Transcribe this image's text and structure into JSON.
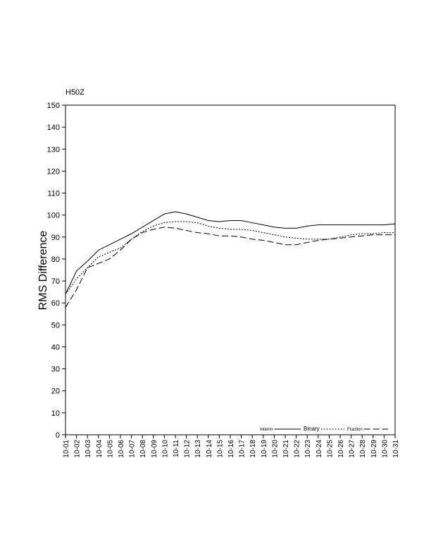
{
  "chart_data": {
    "type": "line",
    "title": "H50Z",
    "y_label": "RMS Difference",
    "categories": [
      "10-01",
      "10-02",
      "10-03",
      "10-04",
      "10-05",
      "10-06",
      "10-07",
      "10-08",
      "10-09",
      "10-10",
      "10-11",
      "10-12",
      "10-13",
      "10-14",
      "10-15",
      "10-16",
      "10-17",
      "10-18",
      "10-19",
      "10-20",
      "10-21",
      "10-22",
      "10-23",
      "10-24",
      "10-25",
      "10-26",
      "10-27",
      "10-28",
      "10-29",
      "10-30",
      "10-31"
    ],
    "series": [
      {
        "name": "Interim",
        "color": "#000000",
        "dash": "solid",
        "values": [
          64,
          74.5,
          79,
          84,
          86.5,
          89,
          91.5,
          94.5,
          97.5,
          100.5,
          101.5,
          100.5,
          99,
          97.5,
          97,
          97.5,
          97.5,
          96.5,
          95.5,
          94.5,
          94,
          94,
          95,
          95.5,
          95.5,
          95.5,
          95.5,
          95.5,
          95.5,
          95.5,
          96
        ]
      },
      {
        "name": "Binary",
        "color": "#000000",
        "dash": "dotted",
        "values": [
          64,
          71,
          76,
          81,
          83,
          85,
          89,
          92.5,
          95,
          96.5,
          97,
          97,
          96.5,
          95,
          94,
          93.5,
          93.5,
          93,
          92,
          91,
          90,
          89.5,
          89,
          89,
          89,
          90,
          91,
          91.5,
          91.5,
          92,
          92
        ]
      },
      {
        "name": "Fraction",
        "color": "#000000",
        "dash": "dashed",
        "values": [
          58,
          66,
          76,
          78,
          80,
          84,
          89,
          92,
          93.5,
          94.5,
          94,
          93,
          92,
          91.5,
          90.5,
          90.5,
          90,
          89,
          88.5,
          87.5,
          86.5,
          86.5,
          87.5,
          88.5,
          89,
          89.5,
          90,
          90.5,
          91,
          91,
          91
        ]
      }
    ],
    "ylim": [
      0,
      150
    ],
    "yticks": [
      0,
      10,
      20,
      30,
      40,
      50,
      60,
      70,
      80,
      90,
      100,
      110,
      120,
      130,
      140,
      150
    ],
    "legend": "lower right"
  }
}
